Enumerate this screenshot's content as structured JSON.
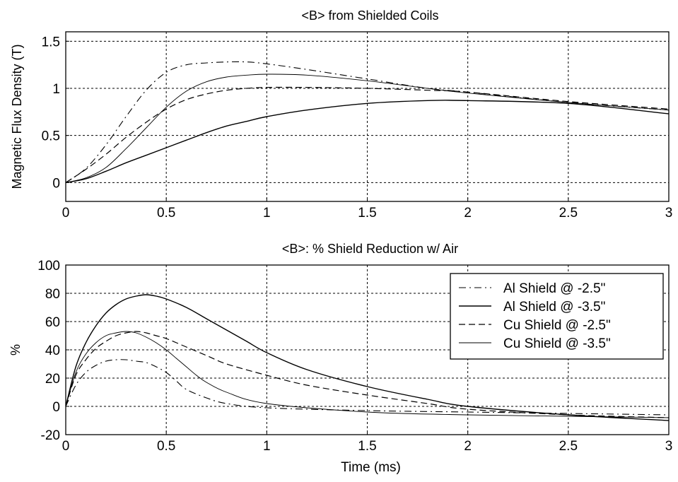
{
  "chart_data": [
    {
      "type": "line",
      "title": "<B> from Shielded Coils",
      "xlabel": "",
      "ylabel": "Magnetic Flux Density (T)",
      "xlim": [
        0,
        3
      ],
      "ylim": [
        -0.2,
        1.6
      ],
      "xticks": [
        "0",
        "0.5",
        "1",
        "1.5",
        "2",
        "2.5",
        "3"
      ],
      "yticks": [
        "0",
        "0.5",
        "1",
        "1.5"
      ],
      "grid": true,
      "legend": "none",
      "series": [
        {
          "style": "dashdot",
          "x": [
            0,
            0.1,
            0.2,
            0.3,
            0.4,
            0.5,
            0.6,
            0.7,
            0.8,
            0.9,
            1.0,
            1.2,
            1.5,
            1.8,
            2.0,
            2.5,
            3.0
          ],
          "y": [
            0,
            0.15,
            0.4,
            0.7,
            0.98,
            1.17,
            1.25,
            1.27,
            1.28,
            1.28,
            1.26,
            1.2,
            1.1,
            1.0,
            0.96,
            0.85,
            0.77
          ]
        },
        {
          "style": "solid-thin",
          "x": [
            0,
            0.1,
            0.2,
            0.3,
            0.4,
            0.5,
            0.6,
            0.7,
            0.8,
            0.9,
            1.0,
            1.2,
            1.5,
            1.8,
            2.0,
            2.5,
            3.0
          ],
          "y": [
            0,
            0.05,
            0.16,
            0.36,
            0.58,
            0.8,
            0.97,
            1.07,
            1.12,
            1.14,
            1.15,
            1.14,
            1.08,
            1.0,
            0.95,
            0.85,
            0.77
          ]
        },
        {
          "style": "dashed",
          "x": [
            0,
            0.1,
            0.2,
            0.3,
            0.4,
            0.5,
            0.6,
            0.7,
            0.8,
            0.9,
            1.0,
            1.2,
            1.5,
            1.8,
            2.0,
            2.5,
            3.0
          ],
          "y": [
            0,
            0.14,
            0.3,
            0.48,
            0.64,
            0.78,
            0.88,
            0.94,
            0.98,
            1.0,
            1.01,
            1.01,
            1.0,
            0.98,
            0.96,
            0.86,
            0.78
          ]
        },
        {
          "style": "solid",
          "x": [
            0,
            0.1,
            0.2,
            0.3,
            0.4,
            0.5,
            0.6,
            0.7,
            0.8,
            0.9,
            1.0,
            1.2,
            1.5,
            1.8,
            2.0,
            2.5,
            3.0
          ],
          "y": [
            0,
            0.04,
            0.12,
            0.21,
            0.29,
            0.37,
            0.45,
            0.53,
            0.6,
            0.65,
            0.7,
            0.77,
            0.84,
            0.87,
            0.87,
            0.84,
            0.73
          ]
        }
      ]
    },
    {
      "type": "line",
      "title": "<B>: % Shield Reduction w/ Air",
      "xlabel": "Time (ms)",
      "ylabel": "%",
      "xlim": [
        0,
        3
      ],
      "ylim": [
        -20,
        100
      ],
      "xticks": [
        "0",
        "0.5",
        "1",
        "1.5",
        "2",
        "2.5",
        "3"
      ],
      "yticks": [
        "-20",
        "0",
        "20",
        "40",
        "60",
        "80",
        "100"
      ],
      "grid": true,
      "legend": "top-right",
      "series": [
        {
          "name": "Al Shield @ -2.5\"",
          "style": "dashdot",
          "x": [
            0,
            0.05,
            0.1,
            0.15,
            0.2,
            0.25,
            0.3,
            0.35,
            0.4,
            0.45,
            0.5,
            0.55,
            0.6,
            0.7,
            0.8,
            1.0,
            1.5,
            2.0,
            2.5,
            3.0
          ],
          "y": [
            0,
            15,
            24,
            29,
            32,
            33,
            33,
            32,
            31,
            28,
            24,
            18,
            12,
            6,
            2,
            -1,
            -3,
            -4,
            -5,
            -6
          ]
        },
        {
          "name": "Al Shield @ -3.5\"",
          "style": "solid",
          "x": [
            0,
            0.05,
            0.1,
            0.15,
            0.2,
            0.25,
            0.3,
            0.35,
            0.4,
            0.45,
            0.5,
            0.6,
            0.7,
            0.8,
            0.9,
            1.0,
            1.2,
            1.5,
            1.8,
            2.0,
            2.5,
            3.0
          ],
          "y": [
            0,
            28,
            45,
            57,
            66,
            72,
            76,
            78,
            79,
            78,
            76,
            70,
            62,
            54,
            46,
            38,
            26,
            14,
            5,
            0,
            -6,
            -10
          ]
        },
        {
          "name": "Cu Shield @ -2.5\"",
          "style": "dashed",
          "x": [
            0,
            0.05,
            0.1,
            0.15,
            0.2,
            0.25,
            0.3,
            0.35,
            0.4,
            0.45,
            0.5,
            0.6,
            0.7,
            0.8,
            1.0,
            1.2,
            1.5,
            1.8,
            2.0,
            2.5,
            3.0
          ],
          "y": [
            0,
            22,
            33,
            41,
            46,
            50,
            52,
            53,
            52,
            50,
            48,
            42,
            36,
            30,
            22,
            15,
            8,
            2,
            -2,
            -6,
            -8
          ]
        },
        {
          "name": "Cu Shield @ -3.5\"",
          "style": "solid-thin",
          "x": [
            0,
            0.05,
            0.1,
            0.15,
            0.2,
            0.25,
            0.3,
            0.35,
            0.4,
            0.45,
            0.5,
            0.55,
            0.6,
            0.65,
            0.7,
            0.8,
            1.0,
            1.5,
            2.0,
            2.5,
            3.0
          ],
          "y": [
            0,
            24,
            37,
            45,
            50,
            52,
            53,
            52,
            49,
            45,
            40,
            34,
            28,
            22,
            17,
            10,
            2,
            -4,
            -6,
            -7,
            -8
          ]
        }
      ]
    }
  ]
}
